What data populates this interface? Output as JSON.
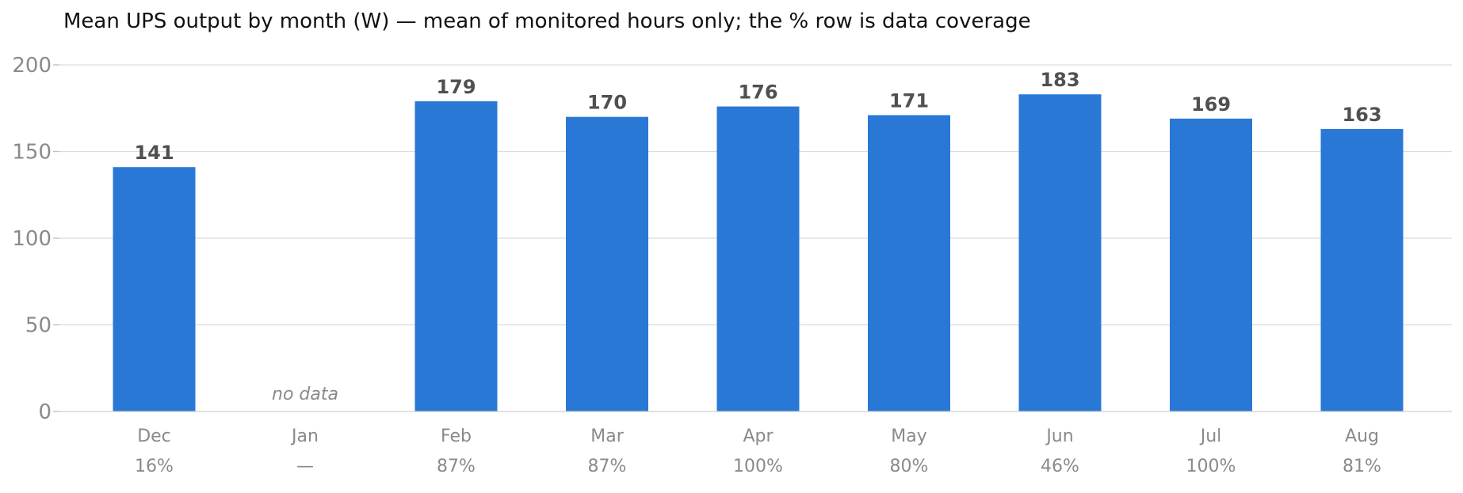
{
  "chart_data": {
    "type": "bar",
    "title": "Mean UPS output by month (W) — mean of monitored hours only; the % row is data coverage",
    "xlabel": "",
    "ylabel": "",
    "ylim": [
      0,
      200
    ],
    "yticks": [
      0,
      50,
      100,
      150,
      200
    ],
    "grid": true,
    "legend": "none",
    "bar_color": "#2a78d6",
    "categories": [
      "Dec",
      "Jan",
      "Feb",
      "Mar",
      "Apr",
      "May",
      "Jun",
      "Jul",
      "Aug"
    ],
    "values": [
      141,
      null,
      179,
      170,
      176,
      171,
      183,
      169,
      163
    ],
    "coverage": [
      "16%",
      "—",
      "87%",
      "87%",
      "100%",
      "80%",
      "46%",
      "100%",
      "81%"
    ],
    "missing_label": "no data"
  }
}
